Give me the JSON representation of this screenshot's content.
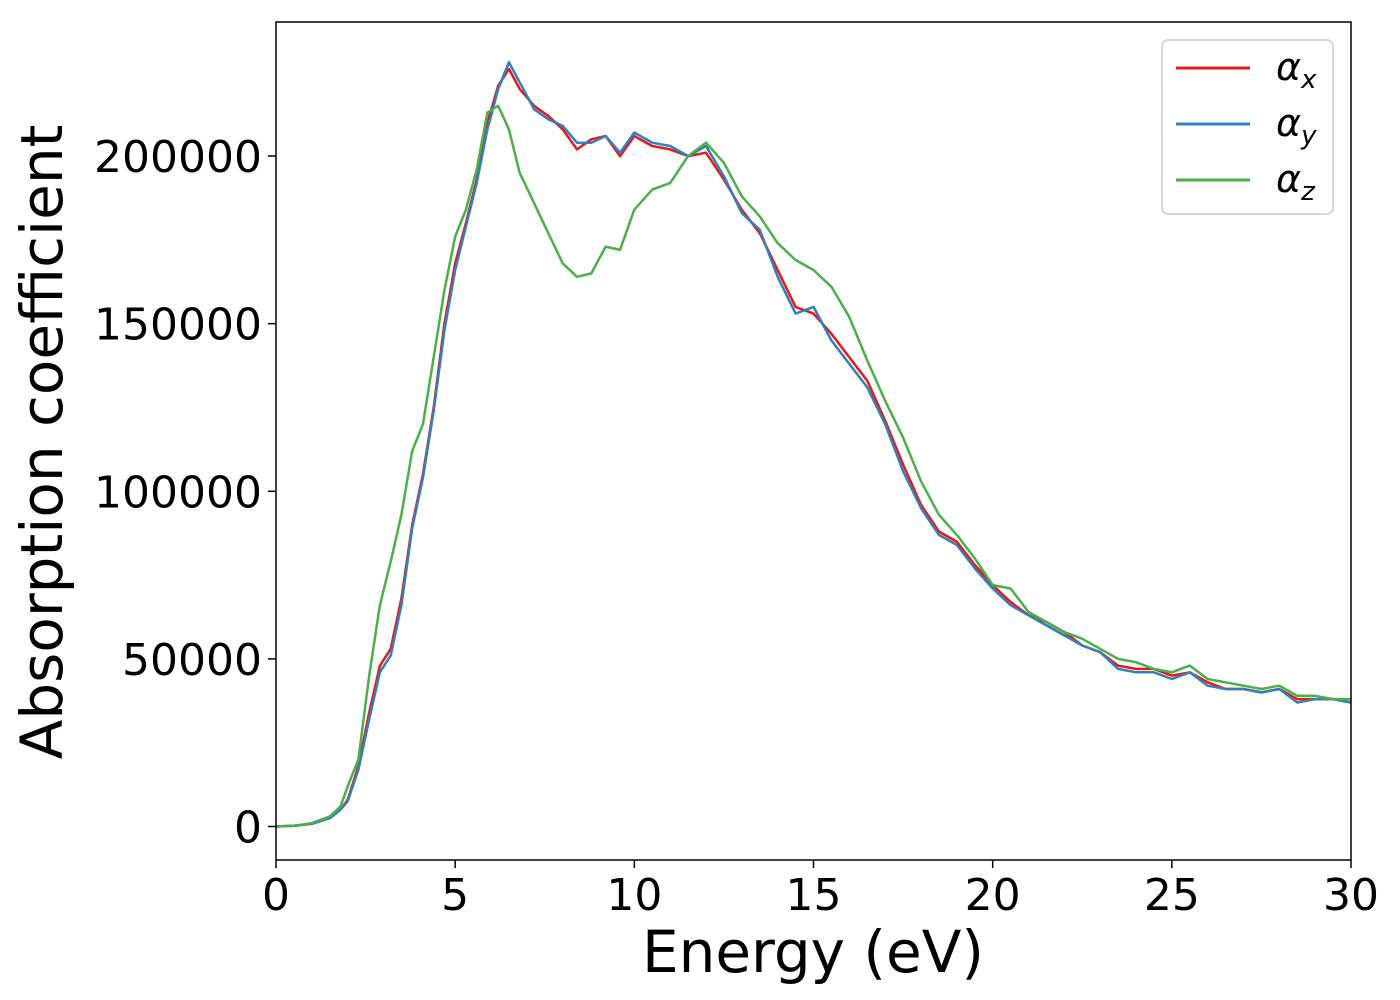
{
  "chart_data": {
    "type": "line",
    "xlabel": "Energy (eV)",
    "ylabel": "Absorption coefficient",
    "xlim": [
      0,
      30
    ],
    "ylim": [
      -10000,
      240000
    ],
    "xticks": [
      0,
      5,
      10,
      15,
      20,
      25,
      30
    ],
    "yticks": [
      0,
      50000,
      100000,
      150000,
      200000
    ],
    "grid": false,
    "legend_position": "top-right",
    "series": [
      {
        "name": "αx",
        "name_base": "α",
        "name_sub": "x",
        "color": "#e41a1c",
        "x": [
          0,
          0.5,
          1.0,
          1.5,
          1.8,
          2.0,
          2.3,
          2.6,
          2.9,
          3.2,
          3.5,
          3.8,
          4.1,
          4.4,
          4.7,
          5.0,
          5.3,
          5.6,
          5.9,
          6.2,
          6.5,
          6.8,
          7.2,
          7.6,
          8.0,
          8.4,
          8.8,
          9.2,
          9.6,
          10.0,
          10.5,
          11.0,
          11.5,
          12.0,
          12.5,
          13.0,
          13.5,
          14.0,
          14.5,
          15.0,
          15.5,
          16.0,
          16.5,
          17.0,
          17.5,
          18.0,
          18.5,
          19.0,
          19.5,
          20.0,
          20.5,
          21.0,
          21.5,
          22.0,
          22.5,
          23.0,
          23.5,
          24.0,
          24.5,
          25.0,
          25.5,
          26.0,
          26.5,
          27.0,
          27.5,
          28.0,
          28.5,
          29.0,
          29.5,
          30.0
        ],
        "y": [
          0,
          200,
          800,
          2500,
          5000,
          8000,
          18000,
          34000,
          48000,
          53000,
          68000,
          90000,
          105000,
          125000,
          150000,
          168000,
          180000,
          193000,
          210000,
          221000,
          226000,
          220000,
          215000,
          212000,
          208000,
          202000,
          205000,
          206000,
          200000,
          206000,
          203000,
          202000,
          200000,
          201000,
          193000,
          184000,
          177000,
          166000,
          155000,
          153000,
          147000,
          140000,
          133000,
          121000,
          108000,
          96000,
          88000,
          85000,
          78000,
          72000,
          67000,
          63000,
          61000,
          58000,
          54000,
          52000,
          48000,
          47000,
          47000,
          45000,
          46000,
          43000,
          41000,
          41000,
          40000,
          41000,
          38000,
          38000,
          38000,
          37000
        ]
      },
      {
        "name": "αy",
        "name_base": "α",
        "name_sub": "y",
        "color": "#377eb8",
        "x": [
          0,
          0.5,
          1.0,
          1.5,
          1.8,
          2.0,
          2.3,
          2.6,
          2.9,
          3.2,
          3.5,
          3.8,
          4.1,
          4.4,
          4.7,
          5.0,
          5.3,
          5.6,
          5.9,
          6.2,
          6.5,
          6.8,
          7.2,
          7.6,
          8.0,
          8.4,
          8.8,
          9.2,
          9.6,
          10.0,
          10.5,
          11.0,
          11.5,
          12.0,
          12.5,
          13.0,
          13.5,
          14.0,
          14.5,
          15.0,
          15.5,
          16.0,
          16.5,
          17.0,
          17.5,
          18.0,
          18.5,
          19.0,
          19.5,
          20.0,
          20.5,
          21.0,
          21.5,
          22.0,
          22.5,
          23.0,
          23.5,
          24.0,
          24.5,
          25.0,
          25.5,
          26.0,
          26.5,
          27.0,
          27.5,
          28.0,
          28.5,
          29.0,
          29.5,
          30.0
        ],
        "y": [
          0,
          200,
          800,
          2500,
          5000,
          7500,
          17000,
          32000,
          46000,
          51000,
          66000,
          89000,
          104000,
          124000,
          148000,
          166000,
          179000,
          192000,
          208000,
          220000,
          228000,
          222000,
          214000,
          211000,
          209000,
          204000,
          204000,
          206000,
          201000,
          207000,
          204000,
          203000,
          200000,
          203000,
          194000,
          183000,
          178000,
          164000,
          153000,
          155000,
          145000,
          138000,
          131000,
          120000,
          106000,
          95000,
          87000,
          84000,
          77000,
          71000,
          66000,
          63000,
          60000,
          57000,
          54000,
          52000,
          47000,
          46000,
          46000,
          44000,
          46000,
          42000,
          41000,
          41000,
          40000,
          41000,
          37000,
          38000,
          38000,
          37000
        ]
      },
      {
        "name": "αz",
        "name_base": "α",
        "name_sub": "z",
        "color": "#4daf4a",
        "x": [
          0,
          0.5,
          1.0,
          1.5,
          1.8,
          2.0,
          2.3,
          2.6,
          2.9,
          3.2,
          3.5,
          3.8,
          4.1,
          4.4,
          4.7,
          5.0,
          5.3,
          5.6,
          5.9,
          6.2,
          6.5,
          6.8,
          7.2,
          7.6,
          8.0,
          8.4,
          8.8,
          9.2,
          9.6,
          10.0,
          10.5,
          11.0,
          11.5,
          12.0,
          12.5,
          13.0,
          13.5,
          14.0,
          14.5,
          15.0,
          15.5,
          16.0,
          16.5,
          17.0,
          17.5,
          18.0,
          18.5,
          19.0,
          19.5,
          20.0,
          20.5,
          21.0,
          21.5,
          22.0,
          22.5,
          23.0,
          23.5,
          24.0,
          24.5,
          25.0,
          25.5,
          26.0,
          26.5,
          27.0,
          27.5,
          28.0,
          28.5,
          29.0,
          29.5,
          30.0
        ],
        "y": [
          0,
          200,
          1000,
          3000,
          6000,
          12000,
          20000,
          45000,
          66000,
          79000,
          93000,
          112000,
          120000,
          140000,
          160000,
          176000,
          184000,
          196000,
          213000,
          215000,
          208000,
          195000,
          186000,
          177000,
          168000,
          164000,
          165000,
          173000,
          172000,
          184000,
          190000,
          192000,
          200000,
          204000,
          198000,
          188000,
          182000,
          174000,
          169000,
          166000,
          161000,
          152000,
          139000,
          127000,
          116000,
          103000,
          93000,
          87000,
          80000,
          72000,
          71000,
          64000,
          61000,
          58000,
          56000,
          53000,
          50000,
          49000,
          47000,
          46000,
          48000,
          44000,
          43000,
          42000,
          41000,
          42000,
          39000,
          39000,
          38000,
          38000
        ]
      }
    ]
  }
}
